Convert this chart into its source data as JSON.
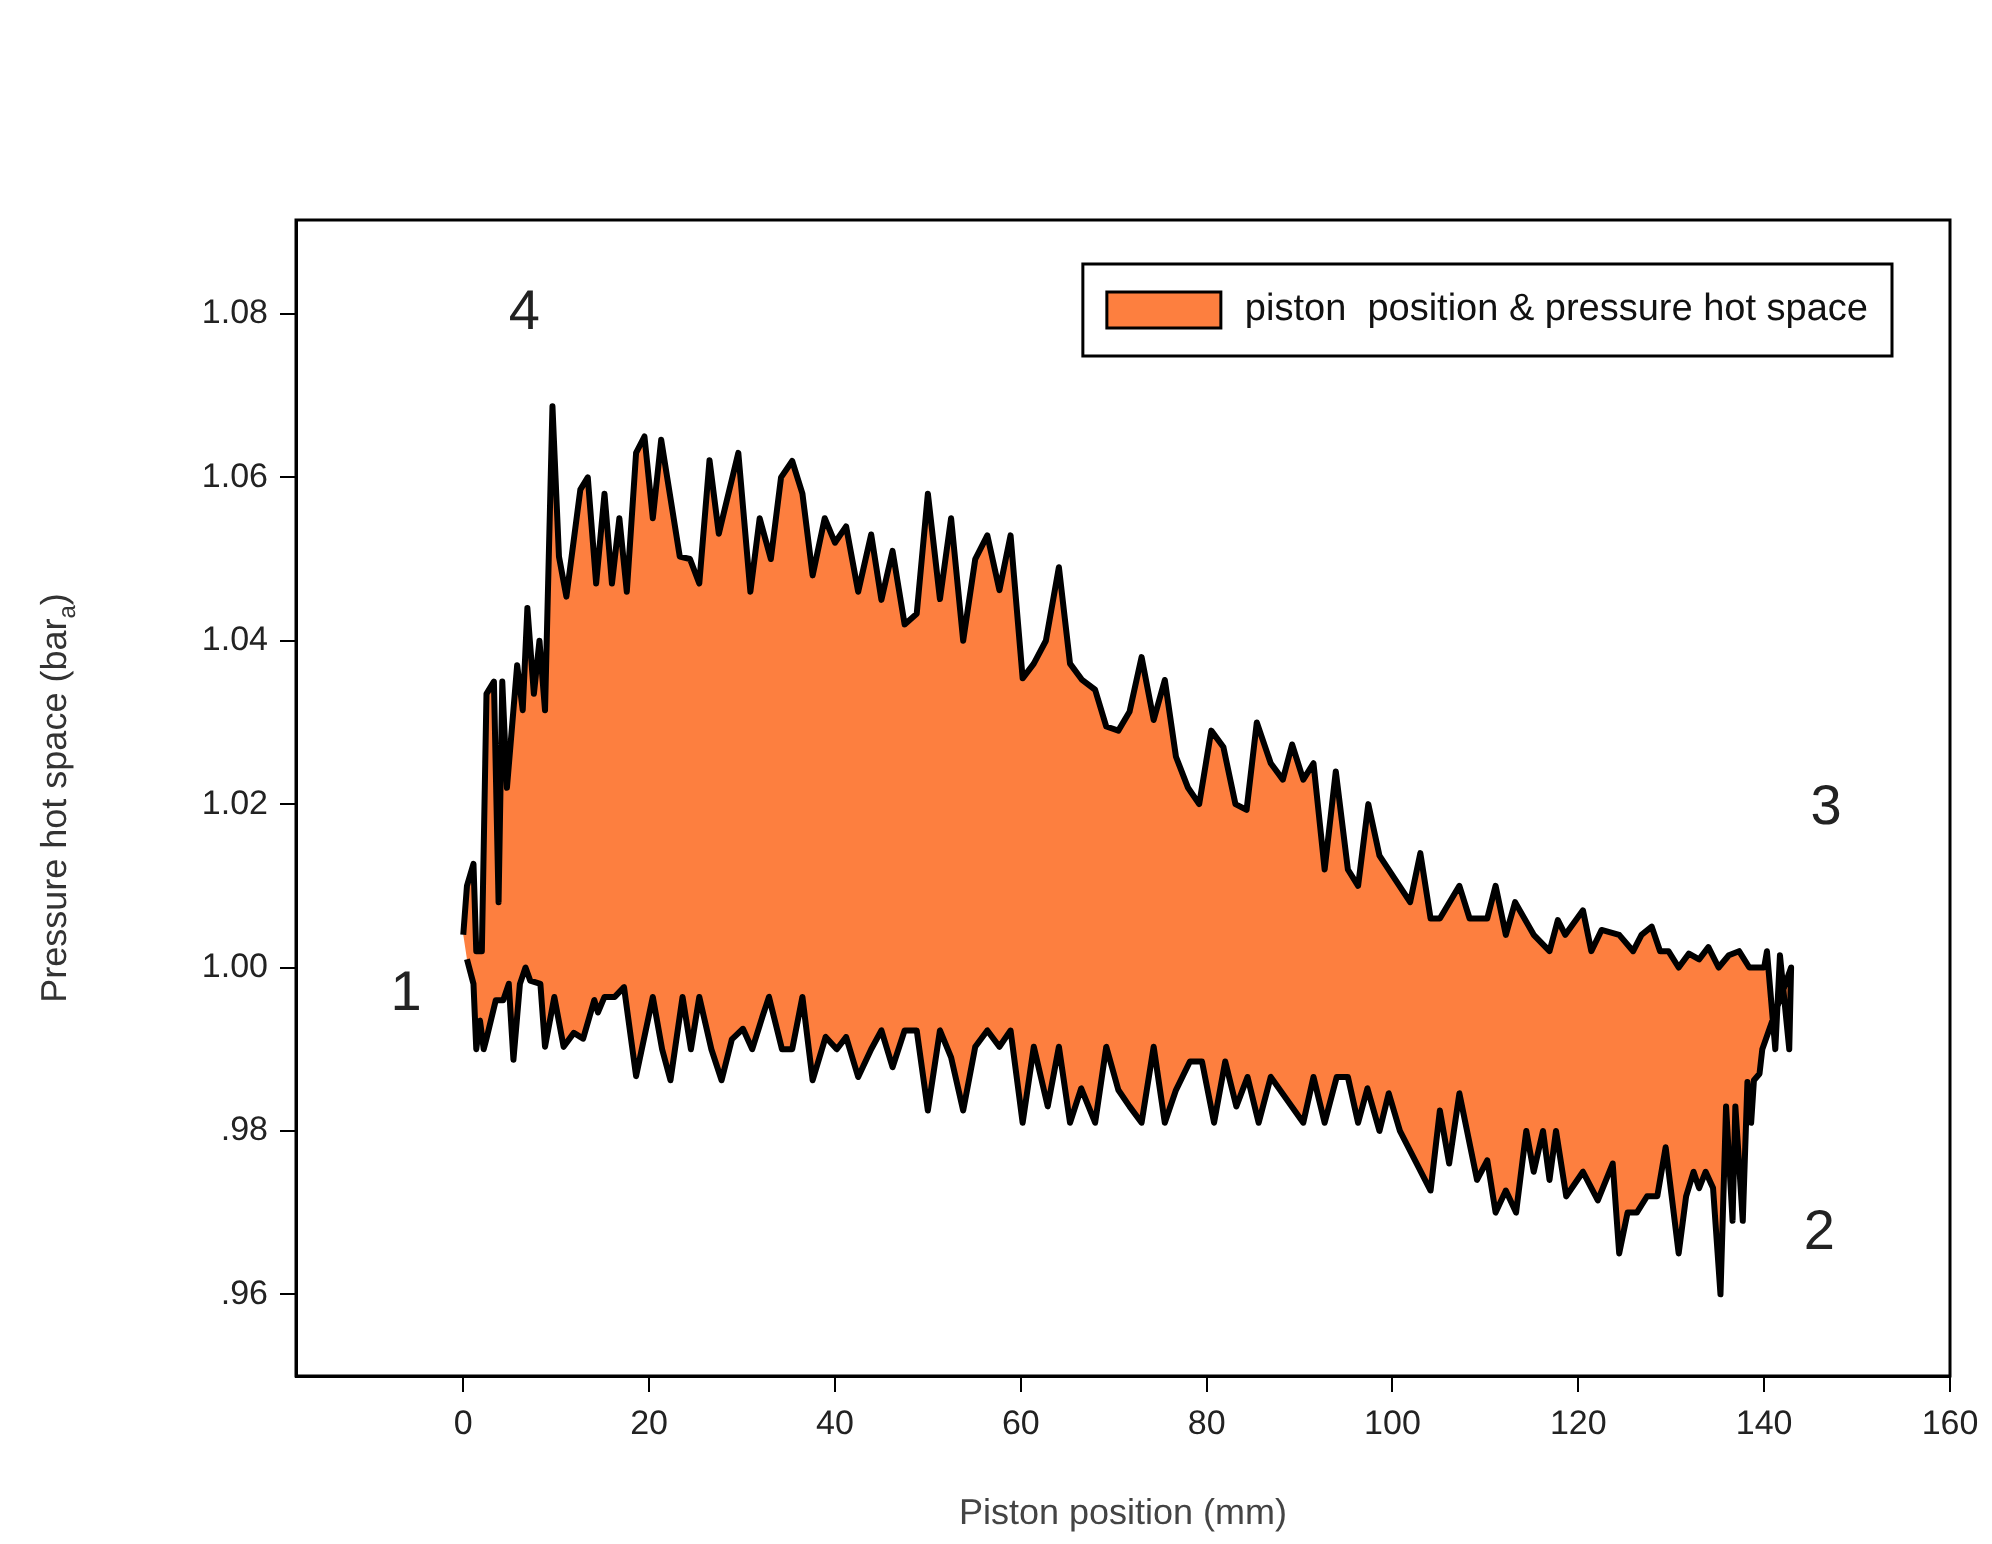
{
  "chart_data": {
    "type": "area",
    "xlabel": "Piston position (mm)",
    "ylabel": "Pressure hot space (bar$_{a}$)",
    "xlim": [
      -18,
      160
    ],
    "xticks": [
      0,
      20,
      40,
      60,
      80,
      100,
      120,
      140,
      160
    ],
    "ylim": [
      0.95,
      1.0915
    ],
    "yticks": [
      {
        "value": 0.96,
        "label": ".96"
      },
      {
        "value": 0.98,
        "label": ".98"
      },
      {
        "value": 1.0,
        "label": "1.00"
      },
      1.02,
      1.04,
      1.06,
      1.08
    ],
    "grid": false,
    "legend": "top right",
    "marker": "none",
    "annotations": [
      "1",
      "2",
      "3",
      "4"
    ],
    "series": [
      {
        "name": "piston  position & pressure hot space",
        "color": "#fd7f3f",
        "x": [
          0,
          0.4,
          1.1,
          1.4,
          2,
          2.5,
          3.3,
          3.8,
          4.2,
          4.7,
          5.8,
          6.4,
          6.9,
          7.6,
          8.2,
          8.8,
          9.6,
          10.3,
          11.1,
          12.6,
          13.4,
          14.3,
          15.2,
          16,
          16.8,
          17.6,
          18.6,
          19.5,
          20.4,
          21.3,
          23.3,
          24.4,
          25.4,
          26.5,
          27.5,
          29.6,
          30.9,
          31.9,
          33.1,
          34.2,
          35.4,
          36.5,
          37.6,
          38.9,
          40,
          41.2,
          42.5,
          43.9,
          45,
          46.2,
          47.5,
          48.8,
          50,
          51.3,
          52.5,
          53.8,
          55.1,
          56.4,
          57.7,
          58.9,
          60.2,
          61.4,
          62.7,
          64.1,
          65.3,
          66.6,
          68,
          69.2,
          70.5,
          71.7,
          73,
          74.3,
          75.5,
          76.7,
          78,
          79.2,
          80.5,
          81.8,
          83.1,
          84.3,
          85.4,
          86.9,
          88.2,
          89.2,
          90.4,
          91.5,
          92.7,
          93.9,
          95.2,
          96.3,
          97.4,
          98.6,
          101.9,
          103,
          104.1,
          105.1,
          107.2,
          108.3,
          110.2,
          111.1,
          112.2,
          113.2,
          115.2,
          116.9,
          117.8,
          118.6,
          120.5,
          121.4,
          122.5,
          124.4,
          125.9,
          126.8,
          127.9,
          128.8,
          129.7,
          130.8,
          131.9,
          133,
          134,
          135.1,
          136.2,
          137.3,
          138.4,
          140,
          140.3,
          141.2,
          141.7,
          142.7,
          142.9,
          139.8,
          139.5,
          138.9,
          138.6,
          138.2,
          137.7,
          136.9,
          136.6,
          135.9,
          135.3,
          134.5,
          133.7,
          133,
          132.4,
          131.6,
          130.8,
          129.4,
          128.5,
          127.4,
          126.3,
          125.3,
          124.4,
          123.7,
          122.1,
          120.5,
          118.7,
          117.6,
          116.9,
          116.2,
          115.2,
          114.4,
          113.3,
          112.2,
          111.1,
          110.2,
          109.1,
          107.2,
          106.1,
          105.1,
          104.1,
          100.8,
          99.6,
          98.6,
          97.3,
          96.3,
          95.2,
          94,
          92.7,
          91.5,
          90.4,
          86.9,
          85.6,
          84.4,
          83.2,
          82,
          80.8,
          79.5,
          78.2,
          76.7,
          75.5,
          74.3,
          73,
          71.7,
          70.5,
          69.2,
          68,
          66.5,
          65.3,
          64.1,
          62.9,
          61.4,
          60.2,
          58.9,
          57.7,
          56.4,
          55.1,
          53.8,
          52.5,
          51.3,
          50,
          48.8,
          47.5,
          46.2,
          45,
          43.9,
          42.5,
          41.2,
          40.2,
          39,
          37.6,
          36.5,
          35.4,
          34.3,
          32.9,
          32.2,
          31.1,
          30.1,
          28.9,
          27.8,
          26.7,
          25.4,
          24.5,
          23.6,
          22.3,
          21.4,
          20.4,
          18.6,
          17.3,
          16.3,
          15.2,
          14.5,
          14.1,
          12.9,
          11.9,
          10.8,
          9.8,
          8.8,
          8.3,
          7.2,
          6.7,
          6.1,
          5.4,
          4.9,
          4.3,
          3.5,
          2.5,
          2.2,
          1.8,
          1.4,
          1.1,
          0.4
        ],
        "values": [
          1.004,
          1.01,
          1.0127,
          1.002,
          1.002,
          1.0335,
          1.035,
          1.008,
          1.035,
          1.022,
          1.037,
          1.0315,
          1.044,
          1.0335,
          1.04,
          1.0315,
          1.0687,
          1.0503,
          1.0454,
          1.0585,
          1.06,
          1.047,
          1.058,
          1.047,
          1.055,
          1.046,
          1.063,
          1.065,
          1.055,
          1.0646,
          1.0503,
          1.05,
          1.047,
          1.0621,
          1.0531,
          1.063,
          1.046,
          1.055,
          1.05,
          1.06,
          1.062,
          1.058,
          1.048,
          1.055,
          1.052,
          1.054,
          1.046,
          1.053,
          1.045,
          1.051,
          1.042,
          1.0433,
          1.058,
          1.0451,
          1.055,
          1.04,
          1.05,
          1.0529,
          1.0462,
          1.0529,
          1.0354,
          1.0372,
          1.04,
          1.049,
          1.0372,
          1.0352,
          1.034,
          1.0295,
          1.029,
          1.0313,
          1.038,
          1.0303,
          1.0352,
          1.0258,
          1.022,
          1.02,
          1.029,
          1.027,
          1.02,
          1.0193,
          1.03,
          1.025,
          1.023,
          1.0273,
          1.023,
          1.025,
          1.012,
          1.024,
          1.012,
          1.01,
          1.02,
          1.0137,
          1.008,
          1.014,
          1.006,
          1.006,
          1.01,
          1.006,
          1.006,
          1.01,
          1.004,
          1.008,
          1.004,
          1.002,
          1.0058,
          1.004,
          1.007,
          1.002,
          1.0046,
          1.004,
          1.002,
          1.004,
          1.005,
          1.002,
          1.002,
          1.0,
          1.0017,
          1.001,
          1.0025,
          1.0,
          1.0015,
          1.002,
          1.0,
          1.0,
          1.002,
          0.99,
          1.0015,
          0.99,
          1.0,
          0.99,
          0.987,
          0.9862,
          0.981,
          0.986,
          0.969,
          0.983,
          0.969,
          0.983,
          0.96,
          0.973,
          0.975,
          0.973,
          0.975,
          0.972,
          0.965,
          0.978,
          0.972,
          0.972,
          0.97,
          0.97,
          0.965,
          0.976,
          0.9715,
          0.975,
          0.972,
          0.98,
          0.974,
          0.98,
          0.975,
          0.98,
          0.97,
          0.9727,
          0.97,
          0.9764,
          0.974,
          0.9846,
          0.976,
          0.9825,
          0.9727,
          0.98,
          0.9846,
          0.98,
          0.9852,
          0.981,
          0.9866,
          0.9866,
          0.981,
          0.9866,
          0.981,
          0.9866,
          0.981,
          0.9866,
          0.983,
          0.9885,
          0.981,
          0.9885,
          0.9885,
          0.985,
          0.981,
          0.9903,
          0.981,
          0.983,
          0.985,
          0.9903,
          0.981,
          0.9852,
          0.981,
          0.9903,
          0.983,
          0.9903,
          0.981,
          0.9923,
          0.9903,
          0.9923,
          0.9903,
          0.9825,
          0.989,
          0.9923,
          0.9825,
          0.9923,
          0.9923,
          0.9878,
          0.9923,
          0.99,
          0.9866,
          0.9915,
          0.99,
          0.9915,
          0.9862,
          0.9964,
          0.99,
          0.99,
          0.9964,
          0.994,
          0.99,
          0.9925,
          0.9912,
          0.9862,
          0.99,
          0.9964,
          0.99,
          0.9964,
          0.9862,
          0.99,
          0.9964,
          0.9867,
          0.9976,
          0.9964,
          0.9964,
          0.9945,
          0.996,
          0.9913,
          0.992,
          0.9903,
          0.9964,
          0.9903,
          0.998,
          0.9984,
          1.0,
          0.998,
          0.9887,
          0.998,
          0.996,
          0.996,
          0.9913,
          0.99,
          0.9935,
          0.99,
          0.998,
          1.001
        ]
      }
    ]
  }
}
